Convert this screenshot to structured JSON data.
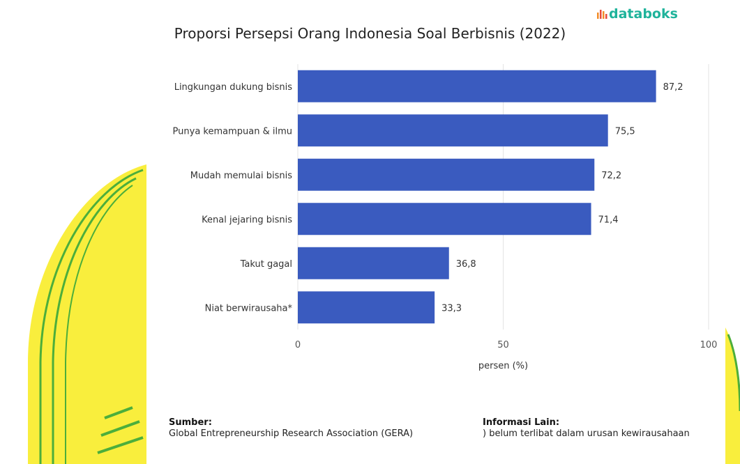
{
  "brand": {
    "name": "databoks",
    "accent_color": "#1fb39b"
  },
  "chart_data": {
    "type": "bar",
    "orientation": "horizontal",
    "title": "Proporsi Persepsi Orang Indonesia Soal Berbisnis (2022)",
    "xlabel": "persen (%)",
    "ylabel": "",
    "categories": [
      "Lingkungan dukung bisnis",
      "Punya kemampuan & ilmu",
      "Mudah memulai bisnis",
      "Kenal jejaring bisnis",
      "Takut gagal",
      "Niat berwirausaha*"
    ],
    "values": [
      87.2,
      75.5,
      72.2,
      71.4,
      36.8,
      33.3
    ],
    "value_labels": [
      "87,2",
      "75,5",
      "72,2",
      "71,4",
      "36,8",
      "33,3"
    ],
    "xlim": [
      0,
      100
    ],
    "xticks": [
      0,
      50,
      100
    ],
    "xtick_labels": [
      "0",
      "50",
      "100"
    ],
    "bar_color": "#3a5bbf",
    "grid": true
  },
  "footer": {
    "source_label": "Sumber:",
    "source_text": "Global Entrepreneurship Research Association (GERA)",
    "info_label": "Informasi Lain:",
    "info_text": ") belum terlibat dalam urusan kewirausahaan"
  }
}
